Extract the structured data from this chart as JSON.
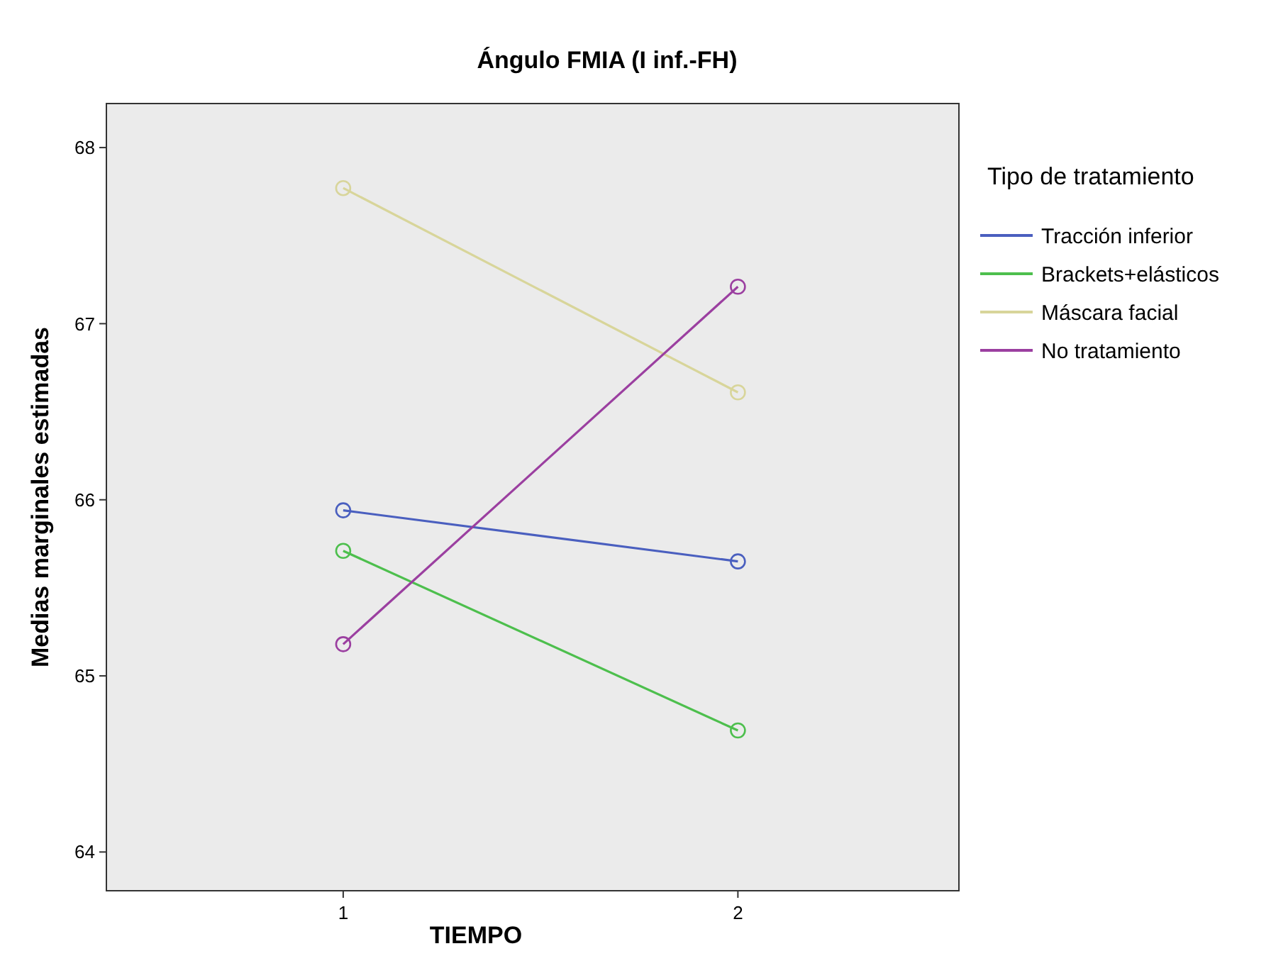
{
  "chart_data": {
    "type": "line",
    "title": "Ángulo FMIA (I inf.-FH)",
    "xlabel": "TIEMPO",
    "ylabel": "Medias marginales estimadas",
    "legend_title": "Tipo de tratamiento",
    "x": [
      1,
      2
    ],
    "xlim": [
      0.4,
      2.56
    ],
    "xticks": [
      1,
      2
    ],
    "ylim": [
      63.78,
      68.25
    ],
    "yticks": [
      64,
      65,
      66,
      67,
      68
    ],
    "series": [
      {
        "name": "Tracción inferior",
        "color": "#4a5fbf",
        "values": [
          65.94,
          65.65
        ]
      },
      {
        "name": "Brackets+elásticos",
        "color": "#4dbf4d",
        "values": [
          65.71,
          64.69
        ]
      },
      {
        "name": "Máscara facial",
        "color": "#d8d59a",
        "values": [
          67.77,
          66.61
        ]
      },
      {
        "name": "No tratamiento",
        "color": "#9b3fa0",
        "values": [
          65.18,
          67.21
        ]
      }
    ],
    "legend": "right",
    "grid": false,
    "marker": "circle",
    "line_style": "solid"
  }
}
